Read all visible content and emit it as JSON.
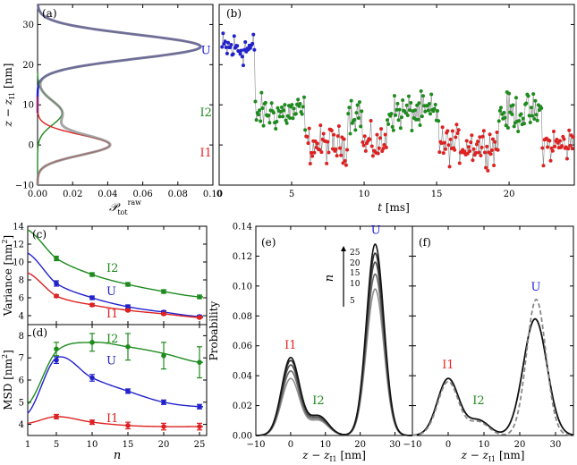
{
  "chart_data": [
    {
      "id": "a",
      "type": "line",
      "panel_label": "(a)",
      "xlabel": "𝒫",
      "xlabel_sub": "tot",
      "xlabel_sup": "raw",
      "ylabel": "z − z",
      "ylabel_sub": "I1",
      "ylabel_unit": " [nm]",
      "xlim": [
        0,
        0.1
      ],
      "ylim": [
        -10,
        35
      ],
      "xticks": [
        0.0,
        0.02,
        0.04,
        0.06,
        0.08,
        0.1
      ],
      "xtick_labels": [
        "0.00",
        "0.02",
        "0.04",
        "0.06",
        "0.08",
        "0.10"
      ],
      "yticks": [
        -10,
        0,
        10,
        20,
        30
      ],
      "ytick_labels": [
        "−10",
        "0",
        "10",
        "20",
        "30"
      ],
      "state_labels": [
        {
          "text": "U",
          "x": 0.096,
          "y": 23.5,
          "color": "#2222dd"
        },
        {
          "text": "I2",
          "x": 0.096,
          "y": 8,
          "color": "#228b22"
        },
        {
          "text": "I1",
          "x": 0.096,
          "y": -2,
          "color": "#ee2222"
        }
      ],
      "series": [
        {
          "name": "U",
          "color": "#2222cc",
          "kind": "gauss",
          "amp": 0.093,
          "mu": 24.5,
          "sigma": 3.0,
          "ymin": 8,
          "ymax": 35
        },
        {
          "name": "I2",
          "color": "#1e8b1e",
          "kind": "gauss",
          "amp": 0.014,
          "mu": 8,
          "sigma": 3.0,
          "ymin": -10,
          "ymax": 18
        },
        {
          "name": "I1",
          "color": "#dd2222",
          "kind": "gauss",
          "amp": 0.041,
          "mu": 0,
          "sigma": 2.5,
          "ymin": -10,
          "ymax": 12
        },
        {
          "name": "total",
          "color": "#888888",
          "kind": "sum",
          "ymin": -10,
          "ymax": 35
        }
      ]
    },
    {
      "id": "b",
      "type": "scatter",
      "panel_label": "(b)",
      "xlabel": "t",
      "xlabel_unit": " [ms]",
      "xlim": [
        0,
        24.5
      ],
      "ylim": [
        -10,
        35
      ],
      "xticks": [
        0,
        5,
        10,
        15,
        20
      ],
      "xtick_labels": [
        "0",
        "5",
        "10",
        "15",
        "20"
      ],
      "yticks": [
        -10,
        0,
        10,
        20,
        30
      ],
      "ytick_labels": [],
      "segments": [
        {
          "state": "U",
          "t0": 0.2,
          "t1": 2.5,
          "level": 24
        },
        {
          "state": "I2",
          "t0": 2.5,
          "t1": 6.0,
          "level": 8
        },
        {
          "state": "I1",
          "t0": 6.0,
          "t1": 8.9,
          "level": 0
        },
        {
          "state": "I2",
          "t0": 8.9,
          "t1": 9.9,
          "level": 8
        },
        {
          "state": "I1",
          "t0": 9.9,
          "t1": 11.6,
          "level": 0
        },
        {
          "state": "I2",
          "t0": 11.6,
          "t1": 15.2,
          "level": 8
        },
        {
          "state": "I1",
          "t0": 15.2,
          "t1": 19.3,
          "level": 0
        },
        {
          "state": "I2",
          "t0": 19.3,
          "t1": 22.3,
          "level": 8
        },
        {
          "state": "I1",
          "t0": 22.3,
          "t1": 24.5,
          "level": 0
        }
      ],
      "state_colors": {
        "U": "#2222cc",
        "I2": "#1e8b1e",
        "I1": "#dd2222"
      }
    },
    {
      "id": "c",
      "type": "line",
      "panel_label": "(c)",
      "ylabel": "Variance",
      "ylabel_unit": " [nm",
      "ylabel_sup": "2",
      "ylabel_end": "]",
      "xlim": [
        1,
        26
      ],
      "ylim": [
        3,
        14
      ],
      "xticks": [
        1,
        5,
        10,
        15,
        20,
        25
      ],
      "xtick_labels": [],
      "yticks": [
        4,
        6,
        8,
        10,
        12,
        14
      ],
      "ytick_labels": [
        "4",
        "6",
        "8",
        "10",
        "12",
        "14"
      ],
      "x": [
        5,
        10,
        15,
        20,
        25
      ],
      "series": [
        {
          "name": "I2",
          "color": "#1e8b1e",
          "values": [
            10.4,
            8.6,
            7.5,
            6.7,
            6.1
          ],
          "err": [
            0.25,
            0.2,
            0.2,
            0.2,
            0.2
          ],
          "curve": [
            13.6,
            10.4,
            8.6,
            7.5,
            6.7,
            6.1
          ],
          "label_x": 12,
          "label_y": 8.9
        },
        {
          "name": "U",
          "color": "#2222cc",
          "values": [
            7.6,
            6.0,
            5.0,
            4.4,
            3.9
          ],
          "err": [
            0.3,
            0.2,
            0.2,
            0.15,
            0.15
          ],
          "curve": [
            11.0,
            7.6,
            6.0,
            5.0,
            4.4,
            3.9
          ],
          "label_x": 12,
          "label_y": 6.3
        },
        {
          "name": "I1",
          "color": "#dd2222",
          "values": [
            6.2,
            5.2,
            4.6,
            4.2,
            3.8
          ],
          "err": [
            0.15,
            0.15,
            0.1,
            0.1,
            0.1
          ],
          "curve": [
            8.8,
            6.2,
            5.2,
            4.6,
            4.2,
            3.8
          ],
          "label_x": 12,
          "label_y": 3.8
        }
      ]
    },
    {
      "id": "d",
      "type": "line",
      "panel_label": "(d)",
      "xlabel": "n",
      "ylabel": "MSD",
      "ylabel_unit": " [nm",
      "ylabel_sup": "2",
      "ylabel_end": "]",
      "xlim": [
        1,
        26
      ],
      "ylim": [
        3.5,
        8.5
      ],
      "xticks": [
        1,
        5,
        10,
        15,
        20,
        25
      ],
      "xtick_labels": [
        "1",
        "5",
        "10",
        "15",
        "20",
        "25"
      ],
      "yticks": [
        4,
        5,
        6,
        7,
        8
      ],
      "ytick_labels": [
        "4",
        "5",
        "6",
        "7",
        "8"
      ],
      "x": [
        5,
        10,
        15,
        20,
        25
      ],
      "series": [
        {
          "name": "I2",
          "color": "#1e8b1e",
          "values": [
            7.4,
            7.7,
            7.5,
            7.1,
            6.8
          ],
          "err": [
            0.3,
            0.4,
            0.6,
            0.6,
            0.7
          ],
          "curve": [
            4.9,
            7.3,
            7.7,
            7.5,
            7.2,
            6.8
          ],
          "label_x": 12,
          "label_y": 7.7
        },
        {
          "name": "U",
          "color": "#2222cc",
          "values": [
            6.9,
            6.1,
            5.5,
            5.0,
            4.8
          ],
          "err": [
            0.15,
            0.15,
            0.1,
            0.1,
            0.1
          ],
          "curve": [
            4.5,
            7.0,
            6.1,
            5.5,
            5.0,
            4.8
          ],
          "label_x": 12,
          "label_y": 6.7
        },
        {
          "name": "I1",
          "color": "#dd2222",
          "values": [
            4.35,
            4.1,
            3.95,
            3.9,
            3.9
          ],
          "err": [
            0.1,
            0.1,
            0.15,
            0.15,
            0.15
          ],
          "curve": [
            4.05,
            4.35,
            4.1,
            3.95,
            3.9,
            3.9
          ],
          "label_x": 12,
          "label_y": 4.1
        }
      ]
    },
    {
      "id": "e",
      "type": "line",
      "panel_label": "(e)",
      "xlabel": "z − z",
      "xlabel_sub": "I1",
      "xlabel_unit": " [nm]",
      "ylabel": "Probability",
      "xlim": [
        -10,
        35
      ],
      "ylim": [
        0,
        0.14
      ],
      "xticks": [
        -10,
        0,
        10,
        20,
        30
      ],
      "xtick_labels": [
        "−10",
        "0",
        "10",
        "20",
        "30"
      ],
      "yticks": [
        0,
        0.02,
        0.04,
        0.06,
        0.08,
        0.1,
        0.12,
        0.14
      ],
      "ytick_labels": [
        "0.00",
        "0.02",
        "0.04",
        "0.06",
        "0.08",
        "0.10",
        "0.12",
        "0.14"
      ],
      "state_labels": [
        {
          "text": "I1",
          "x": 0,
          "y": 0.058,
          "color": "#ee2222"
        },
        {
          "text": "I2",
          "x": 8,
          "y": 0.021,
          "color": "#228b22"
        },
        {
          "text": "U",
          "x": 24.5,
          "y": 0.135,
          "color": "#2222dd"
        }
      ],
      "legend": {
        "title": "n",
        "labels": [
          "25",
          "20",
          "15",
          "10",
          "5"
        ]
      },
      "n_values": [
        5,
        10,
        15,
        20,
        25
      ],
      "peaks": {
        "I1": {
          "mu": 0,
          "sigma": 2.6,
          "amp": [
            0.038,
            0.043,
            0.047,
            0.05,
            0.052
          ]
        },
        "I2": {
          "mu": 8,
          "sigma": 2.8,
          "amp": [
            0.01,
            0.011,
            0.012,
            0.013,
            0.013
          ]
        },
        "U": {
          "mu": 24.3,
          "sigma": 2.5,
          "amp": [
            0.098,
            0.108,
            0.116,
            0.122,
            0.128
          ]
        }
      }
    },
    {
      "id": "f",
      "type": "line",
      "panel_label": "(f)",
      "xlabel": "z − z",
      "xlabel_sub": "I1",
      "xlabel_unit": " [nm]",
      "xlim": [
        -10,
        35
      ],
      "ylim": [
        0,
        0.14
      ],
      "xticks": [
        -10,
        0,
        10,
        20,
        30
      ],
      "xtick_labels": [
        "−10",
        "0",
        "10",
        "20",
        "30"
      ],
      "yticks": [
        0,
        0.02,
        0.04,
        0.06,
        0.08,
        0.1,
        0.12,
        0.14
      ],
      "ytick_labels": [],
      "state_labels": [
        {
          "text": "I1",
          "x": 0,
          "y": 0.045,
          "color": "#ee2222"
        },
        {
          "text": "I2",
          "x": 8.5,
          "y": 0.021,
          "color": "#228b22"
        },
        {
          "text": "U",
          "x": 24.5,
          "y": 0.097,
          "color": "#2222dd"
        }
      ],
      "series": [
        {
          "name": "solid",
          "color": "#111111",
          "dash": "",
          "peaks": [
            [
              0.038,
              0,
              3.0
            ],
            [
              0.01,
              8.5,
              3.0
            ],
            [
              0.078,
              24.3,
              3.3
            ]
          ]
        },
        {
          "name": "dashed",
          "color": "#888888",
          "dash": "5,3",
          "peaks": [
            [
              0.036,
              0,
              2.9
            ],
            [
              0.009,
              8.5,
              2.8
            ],
            [
              0.091,
              24.6,
              2.7
            ]
          ]
        }
      ]
    }
  ]
}
